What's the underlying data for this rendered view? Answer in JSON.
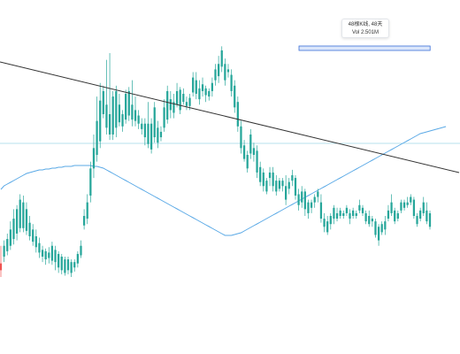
{
  "tooltip": {
    "title": "48根K线, 48天",
    "vol": "Vol 2.501M"
  },
  "colors": {
    "up": "#26a69a",
    "down": "#ef5350",
    "ma": "#5aa9e6",
    "trend": "#333333",
    "hline": "#9fd9e8",
    "range_fill": "#dbe6fb",
    "range_stroke": "#3a6fd8"
  },
  "chart_data": {
    "type": "candlestick",
    "title": "",
    "xlabel": "",
    "ylabel": "",
    "grid": false,
    "ylim": [
      0,
      400
    ],
    "candles": [
      [
        95,
        90,
        108,
        85
      ],
      [
        100,
        108,
        112,
        96
      ],
      [
        104,
        113,
        117,
        101
      ],
      [
        108,
        120,
        126,
        105
      ],
      [
        113,
        128,
        135,
        109
      ],
      [
        117,
        135,
        138,
        112
      ],
      [
        121,
        142,
        146,
        118
      ],
      [
        121,
        140,
        145,
        118
      ],
      [
        119,
        135,
        140,
        116
      ],
      [
        115,
        125,
        130,
        112
      ],
      [
        111,
        120,
        124,
        108
      ],
      [
        107,
        115,
        120,
        103
      ],
      [
        103,
        110,
        114,
        99
      ],
      [
        100,
        105,
        108,
        96
      ],
      [
        98,
        104,
        106,
        94
      ],
      [
        99,
        103,
        107,
        95
      ],
      [
        97,
        108,
        111,
        94
      ],
      [
        96,
        105,
        108,
        90
      ],
      [
        92,
        102,
        104,
        88
      ],
      [
        90,
        100,
        102,
        87
      ],
      [
        88,
        98,
        100,
        86
      ],
      [
        90,
        98,
        100,
        87
      ],
      [
        88,
        96,
        98,
        85
      ],
      [
        92,
        96,
        98,
        89
      ],
      [
        95,
        102,
        104,
        92
      ],
      [
        101,
        108,
        112,
        99
      ],
      [
        123,
        130,
        135,
        120
      ],
      [
        128,
        140,
        146,
        124
      ],
      [
        145,
        165,
        170,
        140
      ],
      [
        165,
        180,
        190,
        158
      ],
      [
        175,
        200,
        218,
        170
      ],
      [
        185,
        215,
        228,
        180
      ],
      [
        205,
        222,
        226,
        202
      ],
      [
        195,
        212,
        245,
        190
      ],
      [
        190,
        205,
        250,
        186
      ],
      [
        190,
        218,
        222,
        186
      ],
      [
        195,
        222,
        226,
        188
      ],
      [
        199,
        212,
        220,
        196
      ],
      [
        196,
        205,
        208,
        192
      ],
      [
        201,
        220,
        223,
        198
      ],
      [
        204,
        222,
        225,
        200
      ],
      [
        201,
        212,
        230,
        196
      ],
      [
        200,
        208,
        218,
        196
      ],
      [
        198,
        204,
        208,
        194
      ],
      [
        194,
        198,
        202,
        190
      ],
      [
        188,
        198,
        202,
        182
      ],
      [
        183,
        198,
        214,
        180
      ],
      [
        179,
        198,
        202,
        176
      ],
      [
        188,
        210,
        214,
        184
      ],
      [
        184,
        195,
        200,
        180
      ],
      [
        188,
        192,
        196,
        185
      ],
      [
        195,
        210,
        216,
        192
      ],
      [
        201,
        222,
        226,
        198
      ],
      [
        208,
        216,
        222,
        202
      ],
      [
        206,
        214,
        220,
        202
      ],
      [
        212,
        222,
        228,
        210
      ],
      [
        208,
        223,
        225,
        205
      ],
      [
        214,
        220,
        224,
        212
      ],
      [
        211,
        214,
        218,
        208
      ],
      [
        211,
        217,
        220,
        208
      ],
      [
        221,
        232,
        236,
        218
      ],
      [
        220,
        230,
        236,
        216
      ],
      [
        216,
        224,
        230,
        212
      ],
      [
        222,
        227,
        232,
        218
      ],
      [
        219,
        224,
        226,
        214
      ],
      [
        218,
        222,
        224,
        215
      ],
      [
        222,
        228,
        232,
        218
      ],
      [
        230,
        238,
        242,
        226
      ],
      [
        233,
        242,
        248,
        228
      ],
      [
        240,
        252,
        255,
        236
      ],
      [
        230,
        242,
        246,
        226
      ],
      [
        236,
        238,
        242,
        232
      ],
      [
        222,
        234,
        238,
        218
      ],
      [
        210,
        226,
        230,
        206
      ],
      [
        196,
        214,
        218,
        192
      ],
      [
        180,
        196,
        200,
        176
      ],
      [
        172,
        182,
        186,
        170
      ],
      [
        165,
        175,
        178,
        162
      ],
      [
        176,
        190,
        194,
        172
      ],
      [
        175,
        180,
        184,
        170
      ],
      [
        162,
        178,
        182,
        158
      ],
      [
        155,
        166,
        170,
        152
      ],
      [
        152,
        162,
        165,
        148
      ],
      [
        148,
        156,
        158,
        146
      ],
      [
        158,
        162,
        166,
        152
      ],
      [
        152,
        162,
        166,
        148
      ],
      [
        148,
        156,
        160,
        145
      ],
      [
        150,
        156,
        158,
        148
      ],
      [
        152,
        156,
        158,
        148
      ],
      [
        142,
        152,
        160,
        138
      ],
      [
        150,
        155,
        158,
        146
      ],
      [
        156,
        160,
        164,
        152
      ],
      [
        145,
        158,
        160,
        142
      ],
      [
        138,
        146,
        150,
        134
      ],
      [
        140,
        148,
        152,
        136
      ],
      [
        135,
        148,
        150,
        130
      ],
      [
        132,
        140,
        142,
        128
      ],
      [
        136,
        140,
        142,
        132
      ],
      [
        140,
        144,
        146,
        136
      ],
      [
        144,
        148,
        150,
        140
      ],
      [
        128,
        140,
        146,
        125
      ],
      [
        122,
        128,
        132,
        118
      ],
      [
        118,
        126,
        130,
        116
      ],
      [
        124,
        130,
        132,
        120
      ],
      [
        128,
        136,
        138,
        124
      ],
      [
        128,
        132,
        136,
        126
      ],
      [
        130,
        134,
        136,
        128
      ],
      [
        130,
        132,
        134,
        128
      ],
      [
        132,
        136,
        138,
        130
      ],
      [
        128,
        132,
        135,
        124
      ],
      [
        130,
        134,
        136,
        128
      ],
      [
        130,
        132,
        134,
        128
      ],
      [
        134,
        138,
        142,
        132
      ],
      [
        132,
        136,
        138,
        130
      ],
      [
        126,
        132,
        134,
        124
      ],
      [
        124,
        130,
        134,
        122
      ],
      [
        126,
        128,
        130,
        122
      ],
      [
        116,
        126,
        128,
        114
      ],
      [
        112,
        122,
        124,
        108
      ],
      [
        118,
        124,
        126,
        116
      ],
      [
        120,
        126,
        130,
        116
      ],
      [
        128,
        134,
        138,
        126
      ],
      [
        132,
        140,
        146,
        130
      ],
      [
        126,
        134,
        136,
        124
      ],
      [
        128,
        132,
        134,
        126
      ],
      [
        134,
        140,
        142,
        132
      ],
      [
        136,
        140,
        142,
        134
      ],
      [
        138,
        140,
        144,
        136
      ],
      [
        140,
        144,
        146,
        138
      ],
      [
        130,
        142,
        144,
        128
      ],
      [
        124,
        130,
        132,
        122
      ],
      [
        128,
        134,
        136,
        126
      ],
      [
        132,
        140,
        144,
        130
      ],
      [
        126,
        134,
        140,
        124
      ],
      [
        122,
        132,
        134,
        120
      ]
    ],
    "moving_average": [
      150,
      146,
      144,
      142,
      140,
      138,
      136,
      134,
      132,
      131,
      130,
      129,
      128,
      128,
      127,
      127,
      126,
      126,
      125,
      125,
      124,
      124,
      124,
      123,
      123,
      123,
      123,
      123,
      123,
      124,
      124,
      125,
      126,
      128,
      130,
      132,
      134,
      136,
      138,
      140,
      142,
      144,
      146,
      148,
      150,
      152,
      154,
      156,
      158,
      160,
      162,
      164,
      166,
      168,
      170,
      172,
      174,
      176,
      178,
      180,
      182,
      184,
      186,
      188,
      190,
      192,
      194,
      196,
      198,
      200,
      202,
      202,
      202,
      201,
      200,
      199,
      197,
      195,
      193,
      191,
      189,
      187,
      185,
      183,
      181,
      179,
      177,
      175,
      173,
      171,
      169,
      167,
      165,
      163,
      161,
      159,
      157,
      155,
      153,
      151,
      149,
      147,
      145,
      143,
      141,
      139,
      137,
      135,
      133,
      131,
      129,
      127,
      125,
      123,
      121,
      119,
      117,
      115,
      113,
      111,
      109,
      107,
      105,
      103,
      101,
      99,
      97,
      95,
      93,
      91,
      89,
      87,
      86,
      85,
      84,
      83,
      82,
      81,
      80,
      79
    ],
    "trendline": {
      "start": [
        0,
        330
      ],
      "end": [
        519,
        205
      ]
    },
    "horizontal_line": {
      "y": 238
    },
    "range_highlight": {
      "x_start": 0.65,
      "x_end": 0.935,
      "y_low": 343,
      "y_high": 348
    }
  }
}
